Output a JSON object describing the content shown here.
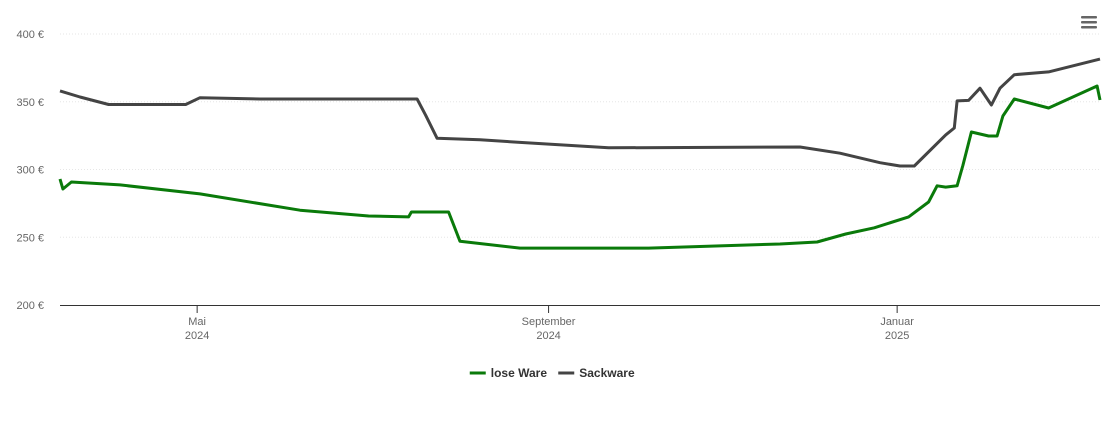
{
  "chart_data": {
    "type": "line",
    "xlim": [
      "2024-03-14",
      "2025-03-13"
    ],
    "xticks": [
      {
        "value": "2024-05",
        "label": [
          "Mai",
          "2024"
        ]
      },
      {
        "value": "2024-09",
        "label": [
          "September",
          "2024"
        ]
      },
      {
        "value": "2025-01",
        "label": [
          "Januar",
          "2025"
        ]
      }
    ],
    "ylim": [
      200,
      400
    ],
    "yticks": [
      {
        "value": 200,
        "label": "200 €"
      },
      {
        "value": 250,
        "label": "250 €"
      },
      {
        "value": 300,
        "label": "300 €"
      },
      {
        "value": 350,
        "label": "350 €"
      },
      {
        "value": 400,
        "label": "400 €"
      }
    ],
    "grid": true,
    "legend": "bottom",
    "series": [
      {
        "name": "lose Ware",
        "color": "#0a7a0a",
        "x": [
          "2024-03-14",
          "2024-03-15",
          "2024-03-18",
          "2024-04-04",
          "2024-05-02",
          "2024-06-06",
          "2024-06-30",
          "2024-07-14",
          "2024-07-15",
          "2024-07-28",
          "2024-08-01",
          "2024-08-22",
          "2024-10-06",
          "2024-11-21",
          "2024-12-04",
          "2024-12-14",
          "2024-12-24",
          "2025-01-05",
          "2025-01-12",
          "2025-01-15",
          "2025-01-18",
          "2025-01-22",
          "2025-01-24",
          "2025-01-27",
          "2025-02-02",
          "2025-02-05",
          "2025-02-07",
          "2025-02-11",
          "2025-02-23",
          "2025-03-12",
          "2025-03-13"
        ],
        "values": [
          293,
          285.6,
          290.8,
          288.6,
          282,
          270,
          265.7,
          265,
          268.6,
          268.6,
          247,
          242,
          242,
          245,
          246.5,
          252.4,
          257,
          265,
          276,
          288,
          287,
          288,
          303,
          327.7,
          324.7,
          324.7,
          339.5,
          352,
          345.4,
          361.6,
          351.3
        ]
      },
      {
        "name": "Sackware",
        "color": "#444444",
        "x": [
          "2024-03-14",
          "2024-03-21",
          "2024-03-31",
          "2024-04-27",
          "2024-05-02",
          "2024-05-23",
          "2024-07-17",
          "2024-07-20",
          "2024-07-24",
          "2024-08-08",
          "2024-08-22",
          "2024-09-22",
          "2024-11-28",
          "2024-12-12",
          "2024-12-26",
          "2025-01-02",
          "2025-01-07",
          "2025-01-18",
          "2025-01-21",
          "2025-01-22",
          "2025-01-26",
          "2025-01-30",
          "2025-02-03",
          "2025-02-06",
          "2025-02-11",
          "2025-02-23",
          "2025-03-13"
        ],
        "values": [
          358,
          353.5,
          348,
          348,
          353,
          352,
          352,
          340,
          323,
          322,
          320,
          316,
          316.6,
          312,
          305,
          302.6,
          302.6,
          325.5,
          330.6,
          350.6,
          351,
          360,
          347.6,
          360,
          370,
          372,
          381.5
        ]
      }
    ]
  }
}
